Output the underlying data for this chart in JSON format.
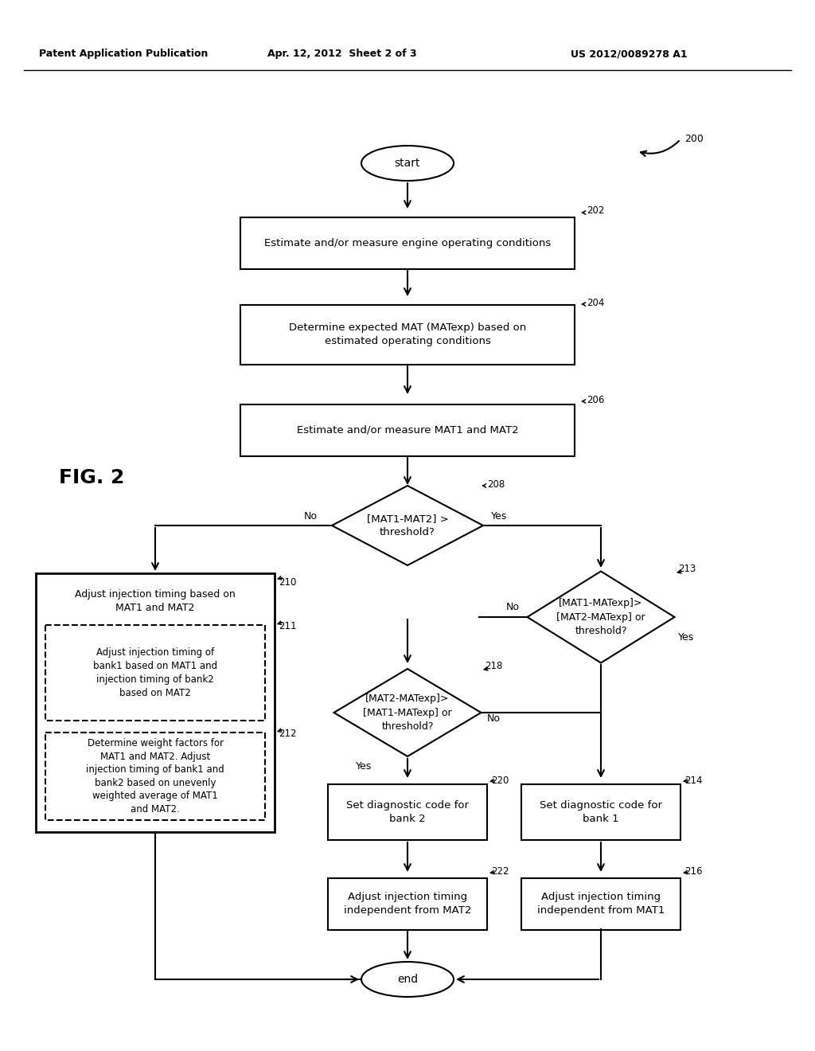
{
  "title_left": "Patent Application Publication",
  "title_mid": "Apr. 12, 2012  Sheet 2 of 3",
  "title_right": "US 2012/0089278 A1",
  "fig_label": "FIG. 2",
  "background": "#ffffff"
}
